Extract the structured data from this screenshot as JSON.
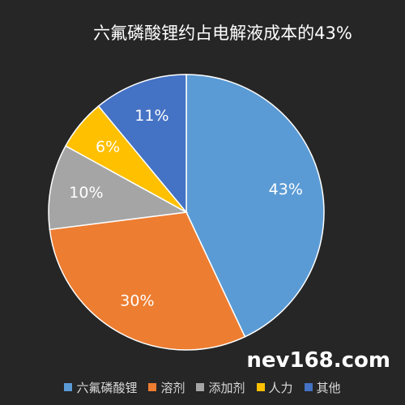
{
  "chart_data": {
    "type": "pie",
    "title": "六氟磷酸锂约占电解液成本的43%",
    "categories": [
      "六氟磷酸锂",
      "溶剂",
      "添加剂",
      "人力",
      "其他"
    ],
    "values": [
      43,
      30,
      10,
      6,
      11
    ],
    "value_labels": [
      "43%",
      "30%",
      "10%",
      "6%",
      "11%"
    ],
    "colors": [
      "#5b9bd5",
      "#ed7d31",
      "#a5a5a5",
      "#ffc000",
      "#4472c4"
    ],
    "legend": "bottom"
  },
  "watermark": "nev168.com"
}
